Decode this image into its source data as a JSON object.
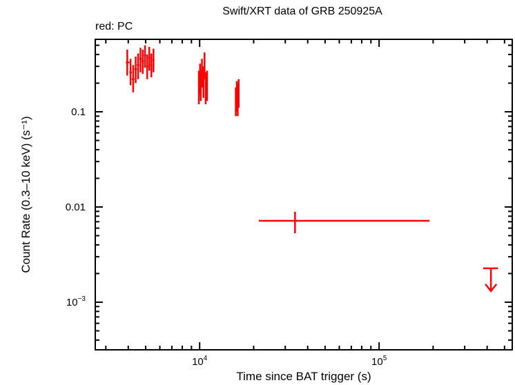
{
  "title": "Swift/XRT data of GRB 250925A",
  "legend_note": "red: PC",
  "xlabel": "Time since BAT trigger (s)",
  "ylabel": "Count Rate (0.3–10 keV) (s⁻¹)",
  "colors": {
    "series": "#ff0000",
    "axes": "#000000",
    "background": "#ffffff"
  },
  "chart_data": {
    "type": "scatter",
    "title": "Swift/XRT data of GRB 250925A",
    "xlabel": "Time since BAT trigger (s)",
    "ylabel": "Count Rate (0.3–10 keV) (s^-1)",
    "xscale": "log",
    "yscale": "log",
    "xlim": [
      2620,
      552000
    ],
    "ylim": [
      0.000316,
      0.577
    ],
    "x_ticks": [
      {
        "value": 10000,
        "label": "10^4"
      },
      {
        "value": 100000,
        "label": "10^5"
      }
    ],
    "y_ticks": [
      {
        "value": 0.1,
        "label": "0.1"
      },
      {
        "value": 0.01,
        "label": "0.01"
      },
      {
        "value": 0.001,
        "label": "10^-3"
      }
    ],
    "grid": false,
    "legend": "red: PC (top-left text)",
    "series": [
      {
        "name": "PC",
        "color": "#ff0000",
        "points": [
          {
            "x": 3950,
            "xlo": 3880,
            "xhi": 4060,
            "y": 0.33,
            "ylo": 0.24,
            "yhi": 0.45
          },
          {
            "x": 4120,
            "xlo": 4060,
            "xhi": 4190,
            "y": 0.26,
            "ylo": 0.19,
            "yhi": 0.36
          },
          {
            "x": 4260,
            "xlo": 4190,
            "xhi": 4330,
            "y": 0.22,
            "ylo": 0.16,
            "yhi": 0.31
          },
          {
            "x": 4400,
            "xlo": 4330,
            "xhi": 4470,
            "y": 0.28,
            "ylo": 0.2,
            "yhi": 0.38
          },
          {
            "x": 4540,
            "xlo": 4470,
            "xhi": 4610,
            "y": 0.31,
            "ylo": 0.22,
            "yhi": 0.41
          },
          {
            "x": 4680,
            "xlo": 4610,
            "xhi": 4750,
            "y": 0.36,
            "ylo": 0.26,
            "yhi": 0.47
          },
          {
            "x": 4820,
            "xlo": 4750,
            "xhi": 4890,
            "y": 0.34,
            "ylo": 0.25,
            "yhi": 0.45
          },
          {
            "x": 4960,
            "xlo": 4890,
            "xhi": 5030,
            "y": 0.39,
            "ylo": 0.29,
            "yhi": 0.5
          },
          {
            "x": 5100,
            "xlo": 5030,
            "xhi": 5170,
            "y": 0.3,
            "ylo": 0.22,
            "yhi": 0.4
          },
          {
            "x": 5240,
            "xlo": 5170,
            "xhi": 5310,
            "y": 0.37,
            "ylo": 0.27,
            "yhi": 0.48
          },
          {
            "x": 5380,
            "xlo": 5310,
            "xhi": 5450,
            "y": 0.31,
            "ylo": 0.23,
            "yhi": 0.41
          },
          {
            "x": 5530,
            "xlo": 5450,
            "xhi": 5600,
            "y": 0.35,
            "ylo": 0.26,
            "yhi": 0.46
          },
          {
            "x": 9900,
            "xlo": 9800,
            "xhi": 10000,
            "y": 0.18,
            "ylo": 0.12,
            "yhi": 0.27
          },
          {
            "x": 10050,
            "xlo": 10000,
            "xhi": 10100,
            "y": 0.22,
            "ylo": 0.15,
            "yhi": 0.32
          },
          {
            "x": 10150,
            "xlo": 10100,
            "xhi": 10200,
            "y": 0.19,
            "ylo": 0.13,
            "yhi": 0.28
          },
          {
            "x": 10300,
            "xlo": 10200,
            "xhi": 10400,
            "y": 0.26,
            "ylo": 0.18,
            "yhi": 0.36
          },
          {
            "x": 10500,
            "xlo": 10400,
            "xhi": 10600,
            "y": 0.21,
            "ylo": 0.14,
            "yhi": 0.3
          },
          {
            "x": 10650,
            "xlo": 10600,
            "xhi": 10700,
            "y": 0.31,
            "ylo": 0.22,
            "yhi": 0.42
          },
          {
            "x": 10800,
            "xlo": 10700,
            "xhi": 10900,
            "y": 0.18,
            "ylo": 0.12,
            "yhi": 0.26
          },
          {
            "x": 11000,
            "xlo": 10900,
            "xhi": 11100,
            "y": 0.19,
            "ylo": 0.13,
            "yhi": 0.27
          },
          {
            "x": 15900,
            "xlo": 15800,
            "xhi": 16000,
            "y": 0.13,
            "ylo": 0.09,
            "yhi": 0.18
          },
          {
            "x": 16100,
            "xlo": 16000,
            "xhi": 16200,
            "y": 0.15,
            "ylo": 0.1,
            "yhi": 0.21
          },
          {
            "x": 16300,
            "xlo": 16200,
            "xhi": 16400,
            "y": 0.14,
            "ylo": 0.09,
            "yhi": 0.2
          },
          {
            "x": 16500,
            "xlo": 16400,
            "xhi": 16600,
            "y": 0.16,
            "ylo": 0.11,
            "yhi": 0.22
          },
          {
            "x": 34000,
            "xlo": 21400,
            "xhi": 191000,
            "y": 0.00716,
            "ylo": 0.0053,
            "yhi": 0.0089
          }
        ],
        "upper_limits": [
          {
            "x": 420000,
            "xlo": 380000,
            "xhi": 460000,
            "y": 0.00227
          }
        ]
      }
    ]
  }
}
